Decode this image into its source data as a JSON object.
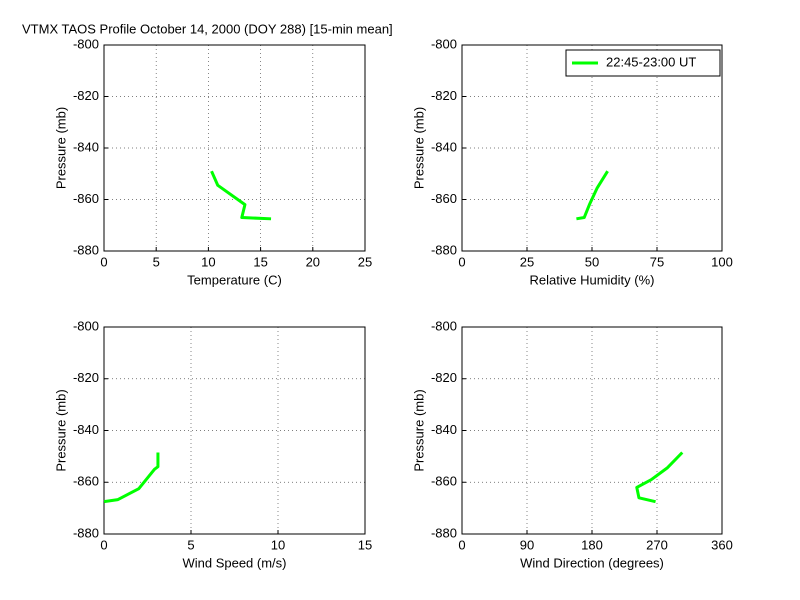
{
  "title": "VTMX TAOS Profile   October 14, 2000 (DOY 288) [15-min mean]",
  "chart_data": [
    {
      "type": "line",
      "xlabel": "Temperature (C)",
      "ylabel": "Pressure (mb)",
      "xlim": [
        0,
        25
      ],
      "xticks": [
        0,
        5,
        10,
        15,
        20,
        25
      ],
      "ylim": [
        -880,
        -800
      ],
      "yticks": [
        -880,
        -860,
        -840,
        -820,
        -800
      ],
      "grid": true,
      "series": [
        {
          "color": "#00ff00",
          "x": [
            10.3,
            10.9,
            13.5,
            13.2,
            16
          ],
          "values": [
            -849,
            -854.5,
            -862,
            -867,
            -867.5
          ]
        }
      ]
    },
    {
      "type": "line",
      "xlabel": "Relative Humidity (%)",
      "ylabel": "Pressure (mb)",
      "xlim": [
        0,
        100
      ],
      "xticks": [
        0,
        25,
        50,
        75,
        100
      ],
      "ylim": [
        -880,
        -800
      ],
      "yticks": [
        -880,
        -860,
        -840,
        -820,
        -800
      ],
      "grid": true,
      "legend": "upper right",
      "series": [
        {
          "name": "22:45-23:00 UT",
          "color": "#00ff00",
          "x": [
            56,
            52,
            49,
            47,
            44
          ],
          "values": [
            -849,
            -855.5,
            -862,
            -867,
            -867.5
          ]
        }
      ]
    },
    {
      "type": "line",
      "xlabel": "Wind Speed (m/s)",
      "ylabel": "Pressure (mb)",
      "xlim": [
        0,
        15
      ],
      "xticks": [
        0,
        5,
        10,
        15
      ],
      "ylim": [
        -880,
        -800
      ],
      "yticks": [
        -880,
        -860,
        -840,
        -820,
        -800
      ],
      "grid": true,
      "series": [
        {
          "color": "#00ff00",
          "x": [
            3.1,
            3.1,
            2.9,
            2.0,
            0.8,
            0
          ],
          "values": [
            -848.5,
            -854,
            -855,
            -862.5,
            -866.7,
            -867.5
          ]
        }
      ]
    },
    {
      "type": "line",
      "xlabel": "Wind Direction (degrees)",
      "ylabel": "Pressure (mb)",
      "xlim": [
        0,
        360
      ],
      "xticks": [
        0,
        90,
        180,
        270,
        360
      ],
      "ylim": [
        -880,
        -800
      ],
      "yticks": [
        -880,
        -860,
        -840,
        -820,
        -800
      ],
      "grid": true,
      "series": [
        {
          "color": "#00ff00",
          "x": [
            305,
            284,
            262,
            242,
            245,
            268
          ],
          "values": [
            -848.5,
            -854.5,
            -859,
            -862,
            -866,
            -867.5
          ]
        }
      ]
    }
  ]
}
